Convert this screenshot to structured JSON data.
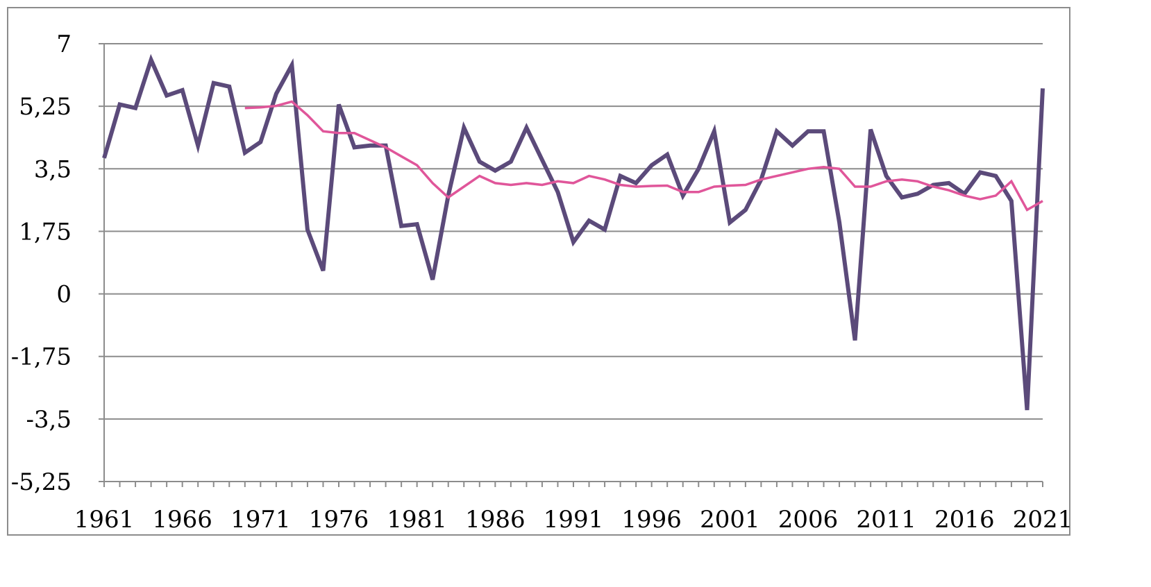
{
  "chart_data": {
    "type": "line",
    "title": "",
    "xlabel": "",
    "ylabel": "",
    "ylim": [
      -5.25,
      7
    ],
    "y_ticks": [
      7,
      5.25,
      3.5,
      1.75,
      0,
      -1.75,
      -3.5,
      -5.25
    ],
    "y_tick_labels": [
      "7",
      "5,25",
      "3,5",
      "1,75",
      "0",
      "-1,75",
      "-3,5",
      "-5,25"
    ],
    "x_range": [
      1961,
      2021
    ],
    "x_tick_labels": [
      "1961",
      "1966",
      "1971",
      "1976",
      "1981",
      "1986",
      "1991",
      "1996",
      "2001",
      "2006",
      "2011",
      "2016",
      "2021"
    ],
    "x_tick_values": [
      1961,
      1966,
      1971,
      1976,
      1981,
      1986,
      1991,
      1996,
      2001,
      2006,
      2011,
      2016,
      2021
    ],
    "grid": "horizontal",
    "legend": "none",
    "series": [
      {
        "color": "#5b4a7a",
        "x": [
          1961,
          1962,
          1963,
          1964,
          1965,
          1966,
          1967,
          1968,
          1969,
          1970,
          1971,
          1972,
          1973,
          1974,
          1975,
          1976,
          1977,
          1978,
          1979,
          1980,
          1981,
          1982,
          1983,
          1984,
          1985,
          1986,
          1987,
          1988,
          1989,
          1990,
          1991,
          1992,
          1993,
          1994,
          1995,
          1996,
          1997,
          1998,
          1999,
          2000,
          2001,
          2002,
          2003,
          2004,
          2005,
          2006,
          2007,
          2008,
          2009,
          2010,
          2011,
          2012,
          2013,
          2014,
          2015,
          2016,
          2017,
          2018,
          2019,
          2020,
          2021
        ],
        "values": [
          3.8,
          5.3,
          5.2,
          6.55,
          5.55,
          5.7,
          4.15,
          5.9,
          5.8,
          3.95,
          4.25,
          5.6,
          6.4,
          1.8,
          0.65,
          5.3,
          4.1,
          4.15,
          4.15,
          1.9,
          1.95,
          0.4,
          2.75,
          4.65,
          3.7,
          3.45,
          3.7,
          4.65,
          3.75,
          2.85,
          1.45,
          2.05,
          1.8,
          3.3,
          3.1,
          3.6,
          3.9,
          2.75,
          3.5,
          4.55,
          2.0,
          2.35,
          3.2,
          4.55,
          4.15,
          4.55,
          4.55,
          2.0,
          -1.3,
          4.6,
          3.3,
          2.7,
          2.8,
          3.05,
          3.1,
          2.8,
          3.4,
          3.3,
          2.6,
          -3.25,
          5.75
        ]
      },
      {
        "color": "#e0569a",
        "x": [
          1970,
          1971,
          1972,
          1973,
          1974,
          1975,
          1976,
          1977,
          1978,
          1979,
          1980,
          1981,
          1982,
          1983,
          1984,
          1985,
          1986,
          1987,
          1988,
          1989,
          1990,
          1991,
          1992,
          1993,
          1994,
          1995,
          1996,
          1997,
          1998,
          1999,
          2000,
          2001,
          2002,
          2003,
          2004,
          2005,
          2006,
          2007,
          2008,
          2009,
          2010,
          2011,
          2012,
          2013,
          2014,
          2015,
          2016,
          2017,
          2018,
          2019,
          2020,
          2021
        ],
        "values": [
          5.2,
          5.22,
          5.26,
          5.38,
          5.0,
          4.55,
          4.5,
          4.5,
          4.3,
          4.1,
          3.85,
          3.6,
          3.1,
          2.7,
          3.0,
          3.3,
          3.1,
          3.05,
          3.1,
          3.05,
          3.15,
          3.1,
          3.3,
          3.2,
          3.05,
          3.0,
          3.02,
          3.03,
          2.85,
          2.85,
          3.0,
          3.03,
          3.05,
          3.2,
          3.3,
          3.4,
          3.5,
          3.55,
          3.5,
          3.0,
          3.0,
          3.15,
          3.2,
          3.15,
          3.0,
          2.9,
          2.75,
          2.65,
          2.75,
          3.15,
          2.35,
          2.6
        ]
      }
    ]
  }
}
